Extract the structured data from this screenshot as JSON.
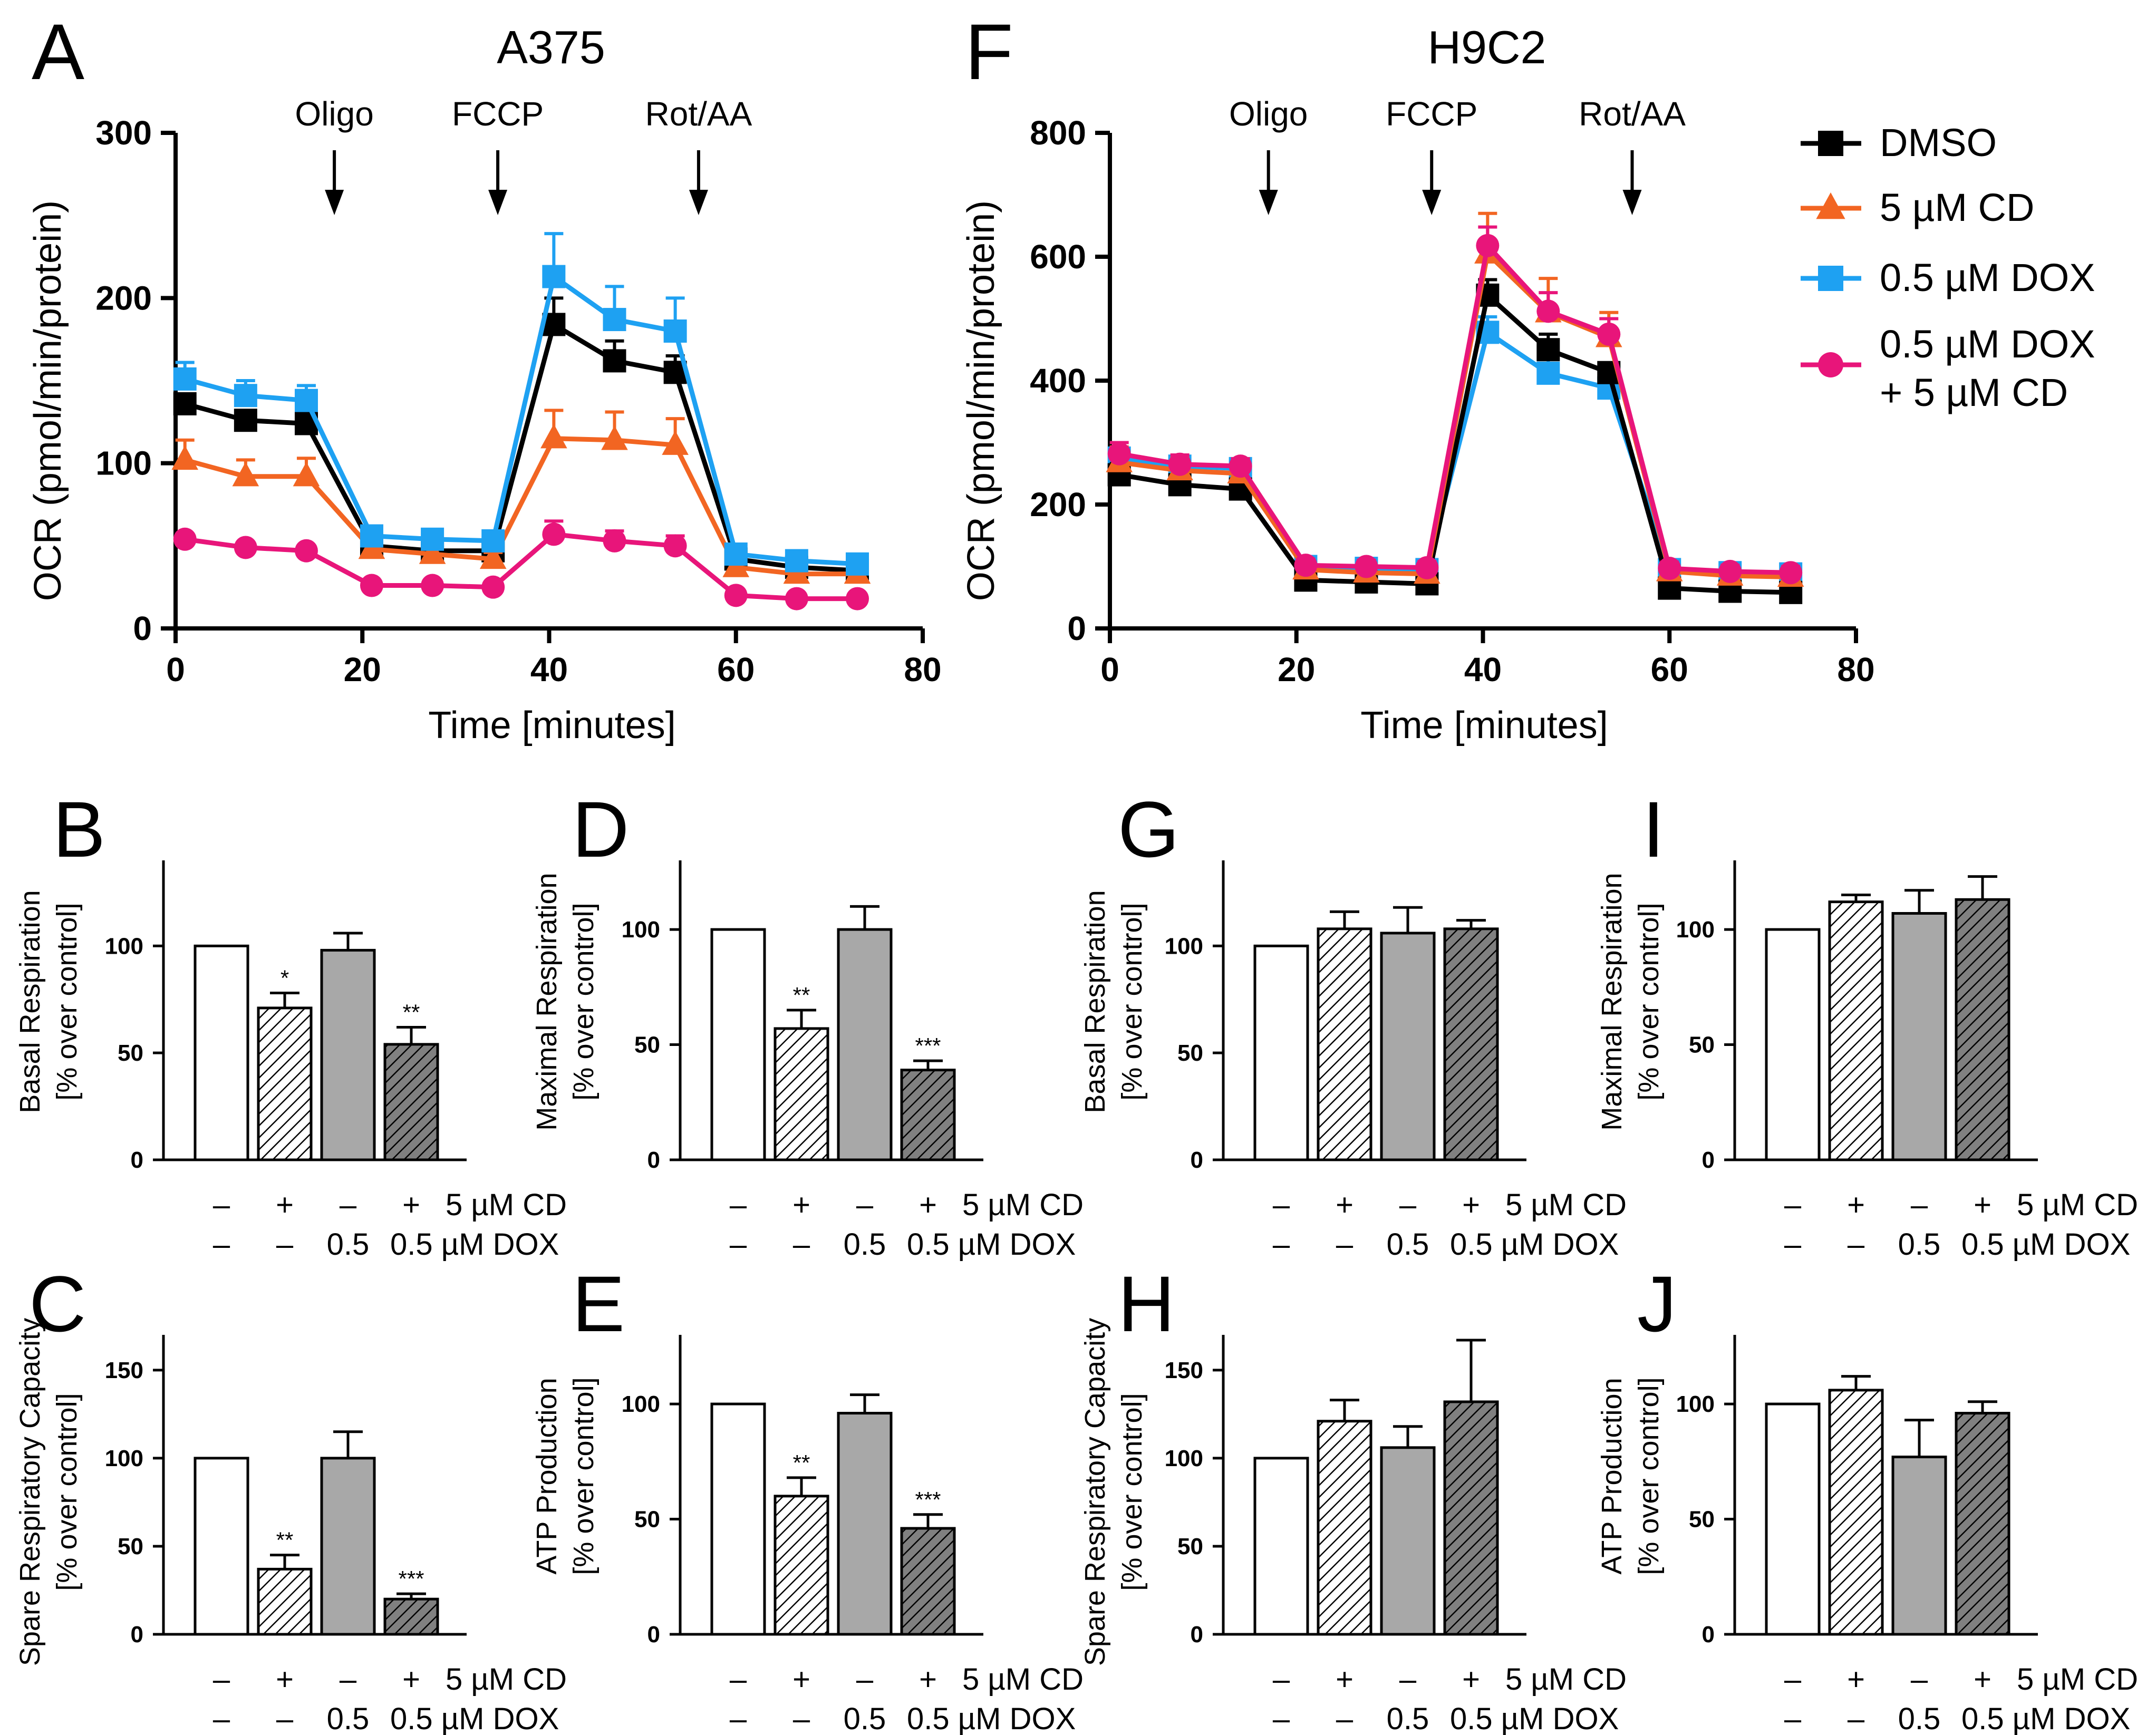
{
  "colors": {
    "dmso": "#000000",
    "cd": "#f26522",
    "dox": "#1ea1f2",
    "doxcd": "#e8157a",
    "bar_dark": "#808080",
    "bar_gray": "#a8a8a8"
  },
  "legend": [
    {
      "key": "dmso",
      "lines": [
        "DMSO"
      ],
      "marker": "square"
    },
    {
      "key": "cd",
      "lines": [
        "5 µM CD"
      ],
      "marker": "triangle"
    },
    {
      "key": "dox",
      "lines": [
        "0.5 µM DOX"
      ],
      "marker": "square"
    },
    {
      "key": "doxcd",
      "lines": [
        "0.5 µM DOX",
        "+ 5 µM CD"
      ],
      "marker": "circle"
    }
  ],
  "chart_data": [
    {
      "type": "line",
      "panel": "A",
      "title": "A375",
      "xlabel": "Time [minutes]",
      "ylabel": "OCR (pmol/min/protein)",
      "xlim": [
        0,
        80
      ],
      "ylim": [
        0,
        300
      ],
      "xticks": [
        0,
        20,
        40,
        60,
        80
      ],
      "yticks": [
        0,
        100,
        200,
        300
      ],
      "injections": [
        {
          "label": "Oligo",
          "x": 17
        },
        {
          "label": "FCCP",
          "x": 34.5
        },
        {
          "label": "Rot/AA",
          "x": 56
        }
      ],
      "x": [
        1,
        7.5,
        14,
        21,
        27.5,
        34,
        40.5,
        47,
        53.5,
        60,
        66.5,
        73
      ],
      "series": [
        {
          "key": "dmso",
          "name": "DMSO",
          "marker": "square",
          "values": [
            136,
            126,
            124,
            50,
            47,
            47,
            184,
            162,
            155,
            42,
            37,
            35
          ],
          "err": [
            5,
            5,
            5,
            4,
            4,
            4,
            16,
            12,
            10,
            4,
            4,
            4
          ]
        },
        {
          "key": "cd",
          "name": "5 µM CD",
          "marker": "triangle",
          "values": [
            102,
            92,
            92,
            48,
            45,
            42,
            115,
            114,
            111,
            37,
            33,
            33
          ],
          "err": [
            12,
            10,
            11,
            4,
            4,
            4,
            17,
            17,
            16,
            4,
            4,
            4
          ]
        },
        {
          "key": "dox",
          "name": "0.5 µM DOX",
          "marker": "square",
          "values": [
            151,
            141,
            138,
            56,
            54,
            53,
            213,
            187,
            180,
            45,
            41,
            39
          ],
          "err": [
            10,
            9,
            9,
            4,
            4,
            4,
            26,
            20,
            20,
            4,
            4,
            4
          ]
        },
        {
          "key": "doxcd",
          "name": "0.5 µM DOX + 5 µM CD",
          "marker": "circle",
          "values": [
            54,
            49,
            47,
            26,
            26,
            25,
            57,
            53,
            50,
            20,
            18,
            18
          ],
          "err": [
            3,
            3,
            3,
            2,
            2,
            2,
            8,
            6,
            6,
            2,
            2,
            2
          ]
        }
      ]
    },
    {
      "type": "line",
      "panel": "F",
      "title": "H9C2",
      "xlabel": "Time [minutes]",
      "ylabel": "OCR (pmol/min/protein)",
      "xlim": [
        0,
        80
      ],
      "ylim": [
        0,
        800
      ],
      "xticks": [
        0,
        20,
        40,
        60,
        80
      ],
      "yticks": [
        0,
        200,
        400,
        600,
        800
      ],
      "injections": [
        {
          "label": "Oligo",
          "x": 17
        },
        {
          "label": "FCCP",
          "x": 34.5
        },
        {
          "label": "Rot/AA",
          "x": 56
        }
      ],
      "x": [
        1,
        7.5,
        14,
        21,
        27.5,
        34,
        40.5,
        47,
        53.5,
        60,
        66.5,
        73
      ],
      "series": [
        {
          "key": "dmso",
          "name": "DMSO",
          "marker": "square",
          "values": [
            248,
            232,
            225,
            78,
            75,
            72,
            538,
            450,
            413,
            65,
            60,
            58
          ],
          "err": [
            18,
            12,
            12,
            14,
            14,
            14,
            25,
            25,
            15,
            22,
            18,
            20
          ]
        },
        {
          "key": "cd",
          "name": "5 µM CD",
          "marker": "triangle",
          "values": [
            268,
            255,
            250,
            95,
            90,
            88,
            605,
            510,
            470,
            92,
            85,
            83
          ],
          "err": [
            25,
            20,
            15,
            12,
            10,
            10,
            65,
            55,
            40,
            12,
            10,
            10
          ]
        },
        {
          "key": "dox",
          "name": "0.5 µM DOX",
          "marker": "square",
          "values": [
            275,
            262,
            258,
            100,
            97,
            95,
            478,
            412,
            388,
            95,
            90,
            88
          ],
          "err": [
            15,
            15,
            15,
            10,
            10,
            10,
            25,
            25,
            20,
            10,
            10,
            10
          ]
        },
        {
          "key": "doxcd",
          "name": "0.5 µM DOX + 5 µM CD",
          "marker": "circle",
          "values": [
            282,
            265,
            262,
            102,
            100,
            98,
            618,
            512,
            475,
            97,
            92,
            90
          ],
          "err": [
            18,
            15,
            12,
            10,
            10,
            10,
            30,
            30,
            25,
            10,
            10,
            10
          ]
        }
      ]
    },
    {
      "type": "bar",
      "panel": "B",
      "ylabel": [
        "Basal Respiration",
        "[% over control]"
      ],
      "ylim": [
        0,
        140
      ],
      "yticks": [
        0,
        50,
        100
      ],
      "values": [
        100,
        71,
        98,
        54
      ],
      "err": [
        0,
        7,
        8,
        8
      ],
      "sig": [
        "",
        "*",
        "",
        "**"
      ]
    },
    {
      "type": "bar",
      "panel": "C",
      "ylabel": [
        "Spare Respiratory Capacity",
        "[% over control]"
      ],
      "ylim": [
        0,
        170
      ],
      "yticks": [
        0,
        50,
        100,
        150
      ],
      "values": [
        100,
        37,
        100,
        20
      ],
      "err": [
        0,
        8,
        15,
        3
      ],
      "sig": [
        "",
        "**",
        "",
        "***"
      ]
    },
    {
      "type": "bar",
      "panel": "D",
      "ylabel": [
        "Maximal Respiration",
        "[% over control]"
      ],
      "ylim": [
        0,
        130
      ],
      "yticks": [
        0,
        50,
        100
      ],
      "values": [
        100,
        57,
        100,
        39
      ],
      "err": [
        0,
        8,
        10,
        4
      ],
      "sig": [
        "",
        "**",
        "",
        "***"
      ]
    },
    {
      "type": "bar",
      "panel": "E",
      "ylabel": [
        "ATP Production",
        "[% over control]"
      ],
      "ylim": [
        0,
        130
      ],
      "yticks": [
        0,
        50,
        100
      ],
      "values": [
        100,
        60,
        96,
        46
      ],
      "err": [
        0,
        8,
        8,
        6
      ],
      "sig": [
        "",
        "**",
        "",
        "***"
      ]
    },
    {
      "type": "bar",
      "panel": "G",
      "ylabel": [
        "Basal Respiration",
        "[% over control]"
      ],
      "ylim": [
        0,
        140
      ],
      "yticks": [
        0,
        50,
        100
      ],
      "values": [
        100,
        108,
        106,
        108
      ],
      "err": [
        0,
        8,
        12,
        4
      ],
      "sig": [
        "",
        "",
        "",
        ""
      ]
    },
    {
      "type": "bar",
      "panel": "H",
      "ylabel": [
        "Spare Respiratory Capacity",
        "[% over control]"
      ],
      "ylim": [
        0,
        170
      ],
      "yticks": [
        0,
        50,
        100,
        150
      ],
      "values": [
        100,
        121,
        106,
        132
      ],
      "err": [
        0,
        12,
        12,
        35
      ],
      "sig": [
        "",
        "",
        "",
        ""
      ]
    },
    {
      "type": "bar",
      "panel": "I",
      "ylabel": [
        "Maximal Respiration",
        "[% over control]"
      ],
      "ylim": [
        0,
        130
      ],
      "yticks": [
        0,
        50,
        100
      ],
      "values": [
        100,
        112,
        107,
        113
      ],
      "err": [
        0,
        3,
        10,
        10
      ],
      "sig": [
        "",
        "",
        "",
        ""
      ]
    },
    {
      "type": "bar",
      "panel": "J",
      "ylabel": [
        "ATP Production",
        "[% over control]"
      ],
      "ylim": [
        0,
        130
      ],
      "yticks": [
        0,
        50,
        100
      ],
      "values": [
        100,
        106,
        77,
        96
      ],
      "err": [
        0,
        6,
        16,
        5
      ],
      "sig": [
        "",
        "",
        "",
        ""
      ]
    }
  ],
  "bar_axis": {
    "row1": [
      "–",
      "+",
      "–",
      "+"
    ],
    "row1_label": "5 µM CD",
    "row2": [
      "–",
      "–",
      "0.5",
      "0.5"
    ],
    "row2_label": "µM DOX"
  }
}
